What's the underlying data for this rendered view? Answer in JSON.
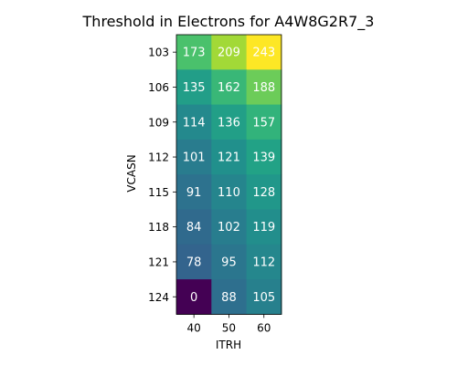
{
  "chart_data": {
    "type": "heatmap",
    "title": "Threshold in Electrons for A4W8G2R7_3",
    "xlabel": "ITRH",
    "ylabel": "VCASN",
    "x_categories": [
      "40",
      "50",
      "60"
    ],
    "y_categories": [
      "103",
      "106",
      "109",
      "112",
      "115",
      "118",
      "121",
      "124"
    ],
    "values": [
      [
        173,
        209,
        243
      ],
      [
        135,
        162,
        188
      ],
      [
        114,
        136,
        157
      ],
      [
        101,
        121,
        139
      ],
      [
        91,
        110,
        128
      ],
      [
        84,
        102,
        119
      ],
      [
        78,
        95,
        112
      ],
      [
        0,
        88,
        105
      ]
    ],
    "colormap": "viridis",
    "color_range": [
      0,
      243
    ],
    "grid": false,
    "cell_label_color": "#ffffff"
  }
}
